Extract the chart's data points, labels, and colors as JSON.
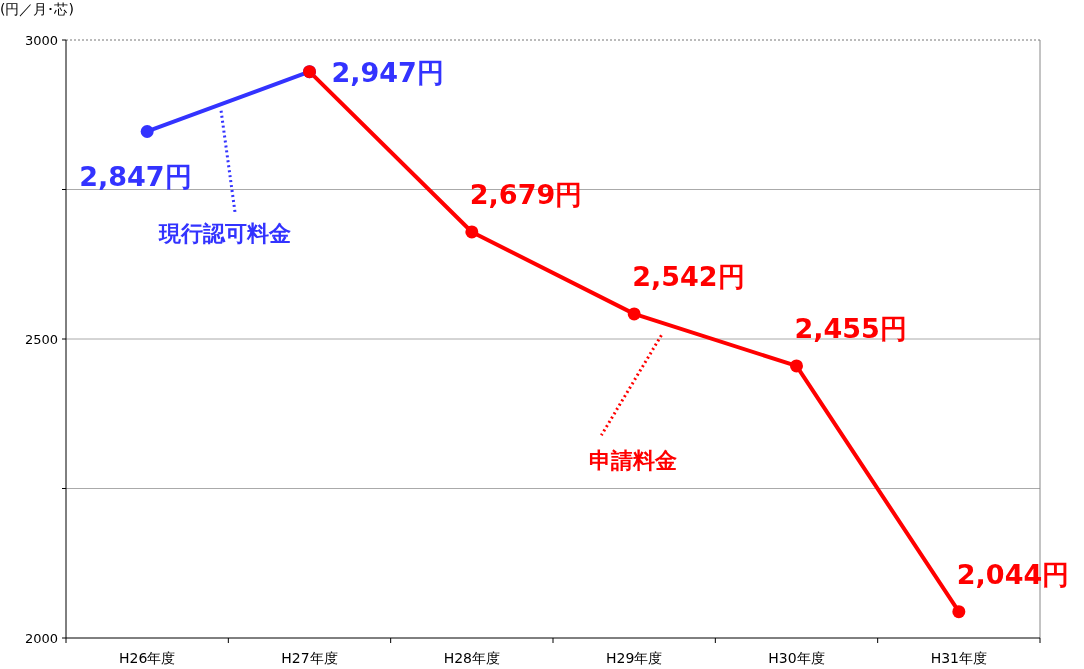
{
  "chart_data": {
    "type": "line",
    "ylabel": "(円／月･芯)",
    "categories": [
      "H26年度",
      "H27年度",
      "H28年度",
      "H29年度",
      "H30年度",
      "H31年度"
    ],
    "ylim": [
      2000,
      3000
    ],
    "yticks": [
      2000,
      {
        "value": 2250,
        "label": null
      },
      2500,
      {
        "value": 2750,
        "label": null
      },
      3000
    ],
    "grid": "y",
    "marker": "circle",
    "line_style": "solid",
    "series": [
      {
        "name": "現行認可料金",
        "color": "#3333ff",
        "values": [
          2847,
          2947,
          null,
          null,
          null,
          null
        ],
        "value_labels": [
          "2,847円",
          "2,947円",
          null,
          null,
          null,
          null
        ]
      },
      {
        "name": "申請料金",
        "color": "#ff0000",
        "values": [
          null,
          2947,
          2679,
          2542,
          2455,
          2044
        ],
        "value_labels": [
          null,
          null,
          "2,679円",
          "2,542円",
          "2,455円",
          "2,044円"
        ]
      }
    ]
  }
}
